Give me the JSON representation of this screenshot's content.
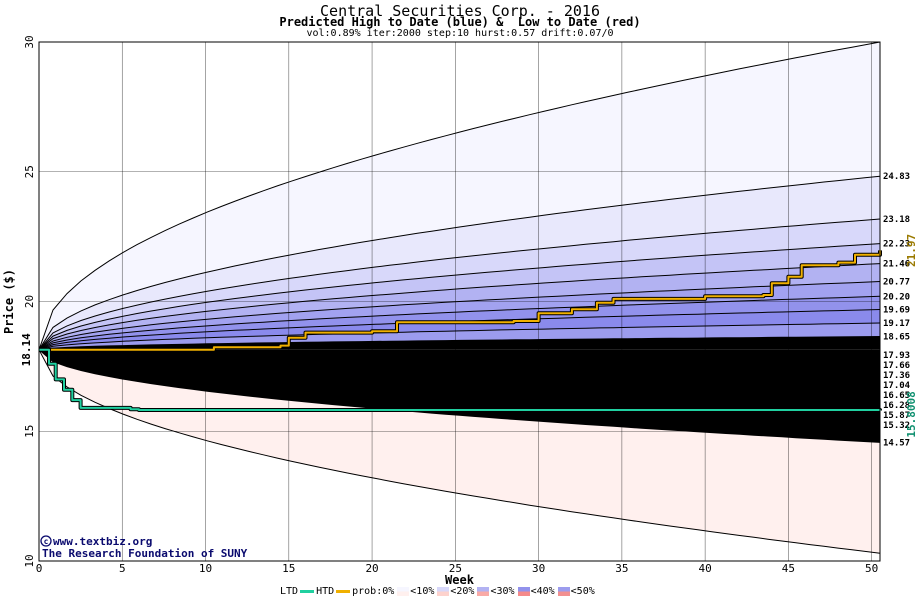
{
  "header": {
    "title": "Central Securities Corp. - 2016",
    "subtitle": "Predicted High to Date (blue) &  Low to Date (red)",
    "params": "vol:0.89% iter:2000 step:10 hurst:0.57 drift:0.07/0"
  },
  "credits": {
    "site": "www.textbiz.org",
    "org": "The Research Foundation of SUNY"
  },
  "legend": {
    "ltd_label": "LTD",
    "htd_label": "HTD",
    "prob_label": "prob:0%",
    "bins": [
      "<10%",
      "<20%",
      "<30%",
      "<40%",
      "<50%"
    ],
    "ltd_color": "#20d0a0",
    "htd_color": "#f0b000"
  },
  "chart_data": {
    "type": "area",
    "title": "Central Securities Corp. - 2016",
    "subtitle": "Predicted High to Date (blue) &  Low to Date (red)",
    "xlabel": "Week",
    "ylabel": "Price ($)",
    "xlim": [
      0,
      50.5
    ],
    "ylim": [
      10,
      30
    ],
    "x_ticks": [
      0,
      5,
      10,
      15,
      20,
      25,
      30,
      35,
      40,
      45,
      50
    ],
    "y_ticks": [
      10,
      15,
      20,
      25,
      30
    ],
    "grid": true,
    "start_price": 18.14,
    "start_label": "18.14",
    "high_levels": [
      24.83,
      23.18,
      22.23,
      21.46,
      20.77,
      20.2,
      19.69,
      19.17,
      18.65
    ],
    "high_level_labels": [
      "24.83",
      "23.18",
      "22.23",
      "21.46",
      "20.77",
      "20.20",
      "19.69",
      "19.17",
      "18.65"
    ],
    "high_outer_end": 30.0,
    "high_band_colors": [
      "#f6f6ff",
      "#e8e8fc",
      "#d8d8fa",
      "#c4c4f6",
      "#b2b2f2",
      "#a2a2f0",
      "#9292ec",
      "#8a8aec",
      "#9c9cee"
    ],
    "low_levels": [
      17.93,
      17.66,
      17.36,
      17.04,
      16.65,
      16.28,
      15.87,
      15.32,
      14.57
    ],
    "low_level_labels": [
      "17.93",
      "17.66",
      "17.36",
      "17.04",
      "16.65",
      "16.28",
      "15.87",
      "15.32",
      "14.57"
    ],
    "low_outer_end": 10.3,
    "low_band_colors": [
      "#fff0ee",
      "#ffe2df",
      "#fdd2cd",
      "#fbbfba",
      "#f9aaa6",
      "#f79896",
      "#f58a8a",
      "#f28080",
      "#f29090"
    ],
    "series": [
      {
        "name": "HTD",
        "color": "#f0b000",
        "end_value": 21.97,
        "end_label": "21.97",
        "points": [
          [
            0,
            18.14
          ],
          [
            10,
            18.14
          ],
          [
            10.5,
            18.24
          ],
          [
            14.5,
            18.3
          ],
          [
            15,
            18.6
          ],
          [
            16,
            18.8
          ],
          [
            20,
            18.85
          ],
          [
            21.5,
            19.2
          ],
          [
            28.5,
            19.25
          ],
          [
            30,
            19.55
          ],
          [
            32,
            19.7
          ],
          [
            33.5,
            19.95
          ],
          [
            34.5,
            20.1
          ],
          [
            40,
            20.2
          ],
          [
            43.5,
            20.25
          ],
          [
            44,
            20.7
          ],
          [
            45,
            20.95
          ],
          [
            45.8,
            21.4
          ],
          [
            48,
            21.5
          ],
          [
            49,
            21.8
          ],
          [
            50.5,
            21.97
          ]
        ]
      },
      {
        "name": "LTD",
        "color": "#20d0a0",
        "end_value": 15.8008,
        "end_label": "15.8008",
        "points": [
          [
            0,
            18.14
          ],
          [
            0.6,
            17.6
          ],
          [
            1,
            17.0
          ],
          [
            1.5,
            16.6
          ],
          [
            2.0,
            16.2
          ],
          [
            2.5,
            15.9
          ],
          [
            5.5,
            15.85
          ],
          [
            6,
            15.82
          ],
          [
            50.5,
            15.8
          ]
        ]
      }
    ]
  }
}
